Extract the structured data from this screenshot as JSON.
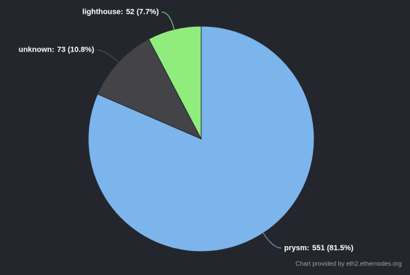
{
  "chart_data": {
    "type": "pie",
    "categories": [
      "prysm:",
      "unknown:",
      "lighthouse:"
    ],
    "values": [
      551,
      73,
      52
    ],
    "value_labels": [
      "551 (81.5%)",
      "73 (10.8%)",
      "52 (7.7%)"
    ],
    "colors": [
      "#7cb5ec",
      "#434348",
      "#90ed7d"
    ],
    "credit": "Chart provided by eth2.ethernodes.org"
  }
}
